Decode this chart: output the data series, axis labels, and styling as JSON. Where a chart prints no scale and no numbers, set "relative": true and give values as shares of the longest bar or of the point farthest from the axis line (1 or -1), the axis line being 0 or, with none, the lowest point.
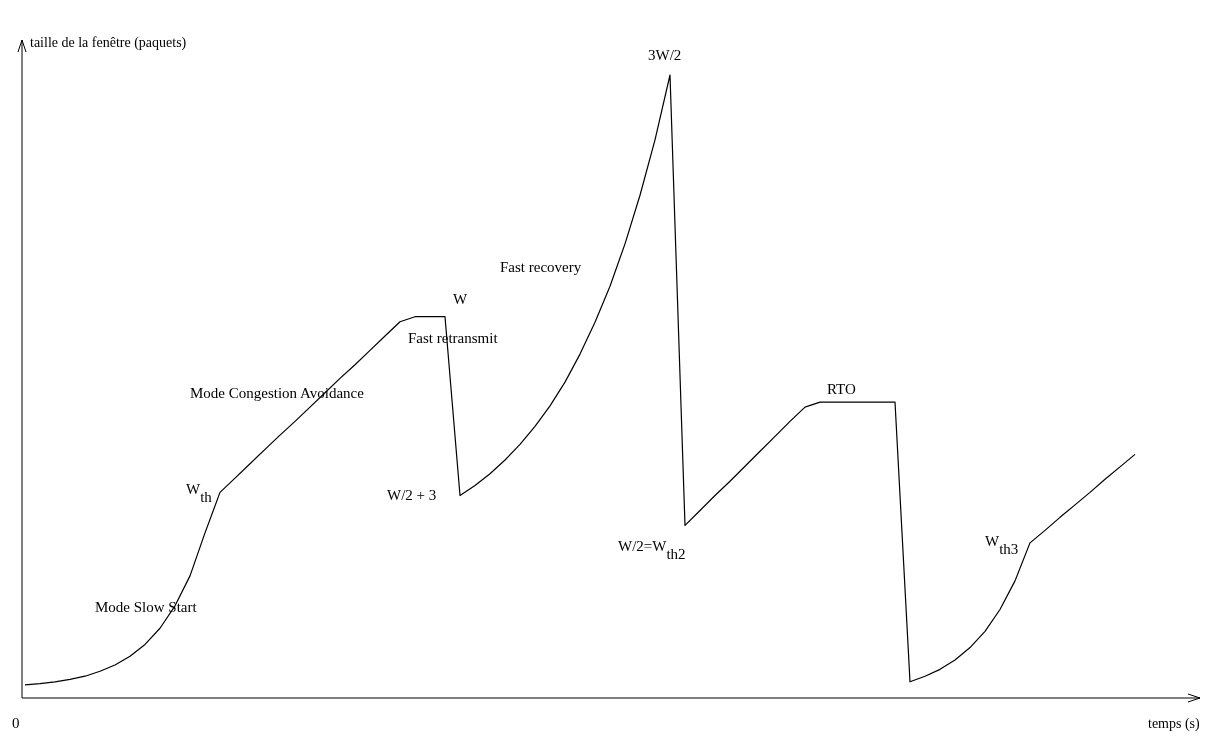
{
  "chart_data": {
    "type": "line",
    "relative": true,
    "xlabel": "temps (s)",
    "ylabel": "taille de la fenêtre (paquets)",
    "color": "#000000",
    "line_style": "solid",
    "marker": "none",
    "categories": [
      null,
      null,
      null,
      null,
      null,
      null,
      null,
      null,
      null,
      null,
      null,
      null,
      null,
      null,
      null,
      null,
      null,
      null,
      null,
      null,
      null,
      null,
      null,
      null,
      null,
      null,
      null,
      null,
      null,
      null,
      null,
      null,
      null,
      null,
      null,
      null,
      null,
      null,
      null,
      null,
      null,
      null,
      null,
      null,
      null,
      null,
      null,
      null,
      null,
      null,
      null,
      null,
      null,
      null,
      null,
      null,
      null,
      null,
      null,
      null,
      null,
      null,
      null,
      null,
      null,
      null,
      null,
      null,
      null,
      null,
      null,
      null,
      null,
      null,
      null,
      null,
      null,
      null,
      null
    ],
    "values": [
      0.021,
      0.023,
      0.026,
      0.03,
      0.035,
      0.043,
      0.053,
      0.067,
      0.086,
      0.112,
      0.148,
      0.196,
      0.265,
      0.33,
      0.353,
      0.376,
      0.399,
      0.422,
      0.444,
      0.467,
      0.49,
      0.513,
      0.535,
      0.558,
      0.581,
      0.604,
      0.612,
      0.612,
      0.612,
      0.325,
      0.341,
      0.36,
      0.382,
      0.407,
      0.436,
      0.469,
      0.507,
      0.552,
      0.603,
      0.661,
      0.729,
      0.807,
      0.896,
      1.0,
      0.277,
      0.301,
      0.325,
      0.348,
      0.372,
      0.396,
      0.42,
      0.444,
      0.467,
      0.475,
      0.475,
      0.475,
      0.475,
      0.475,
      0.475,
      0.026,
      0.035,
      0.046,
      0.061,
      0.081,
      0.107,
      0.142,
      0.188,
      0.249,
      0.269,
      0.29,
      0.31,
      0.33,
      0.351,
      0.371,
      0.391,
      null,
      null,
      null,
      null
    ],
    "annotations": [
      "0",
      "Mode Slow Start",
      "Mode Congestion Avoidance",
      "Fast retransmit",
      "W",
      "Fast recovery",
      "3W/2",
      "W$_{th}$",
      "W/2 + 3",
      "W/2=W$_{th2}$",
      "RTO",
      "W$_{th3}$"
    ]
  }
}
